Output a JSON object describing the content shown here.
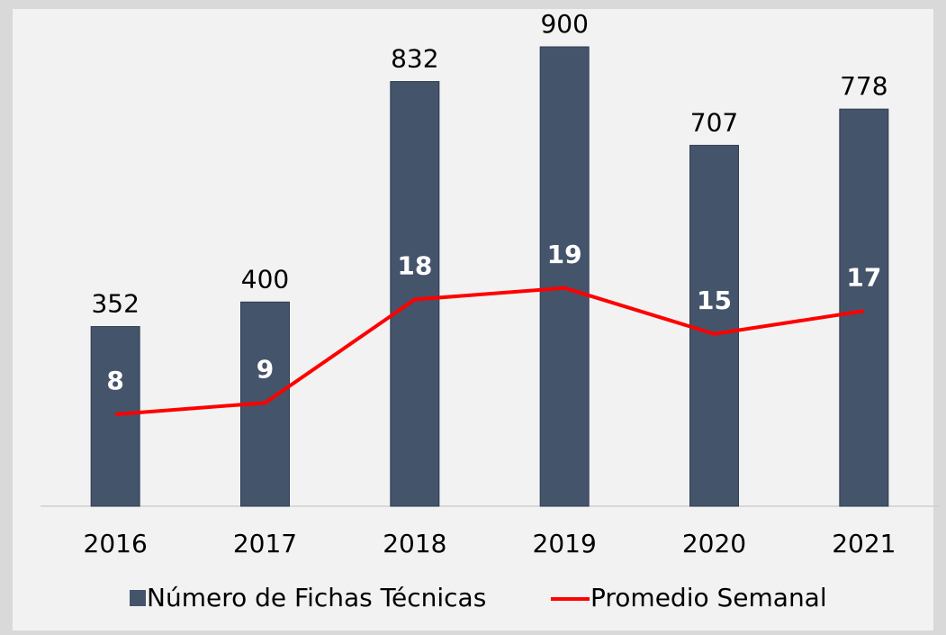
{
  "chart_data": {
    "type": "bar",
    "categories": [
      "2016",
      "2017",
      "2018",
      "2019",
      "2020",
      "2021"
    ],
    "series": [
      {
        "name": "Número de Fichas Técnicas",
        "type": "bar",
        "color": "#44546a",
        "values": [
          352,
          400,
          832,
          900,
          707,
          778
        ]
      },
      {
        "name": "Promedio Semanal",
        "type": "line",
        "axis": "y2",
        "color": "#ff0000",
        "values": [
          8,
          9,
          18,
          19,
          15,
          17
        ]
      }
    ],
    "ylim": [
      0,
      900
    ],
    "y2lim": [
      0,
      40
    ],
    "legend": "bottom"
  }
}
